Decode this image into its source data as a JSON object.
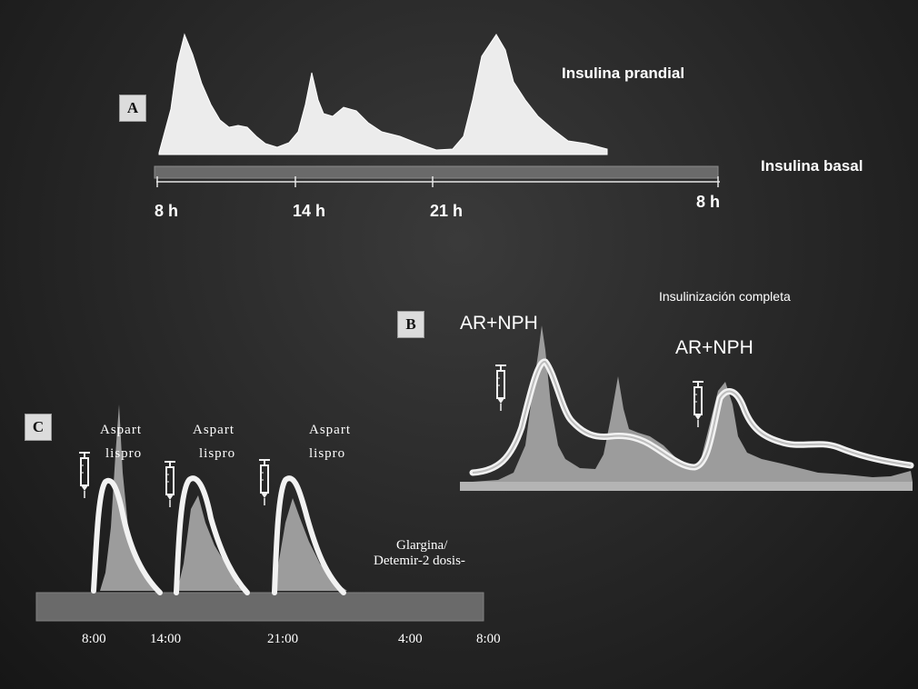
{
  "panel_a": {
    "letter": "A",
    "prandial_label": "Insulina prandial",
    "basal_label": "Insulina basal",
    "ticks": [
      "8 h",
      "14 h",
      "21 h",
      "8 h"
    ]
  },
  "panel_b": {
    "letter": "B",
    "title": "Insulinización completa",
    "dose_labels": [
      "AR+NPH",
      "AR+NPH"
    ]
  },
  "panel_c": {
    "letter": "C",
    "dose_labels": [
      {
        "line1": "Aspart",
        "line2": "lispro"
      },
      {
        "line1": "Aspart",
        "line2": "lispro"
      },
      {
        "line1": "Aspart",
        "line2": "lispro"
      }
    ],
    "basal_label_line1": "Glargina/",
    "basal_label_line2": "Detemir-2 dosis-",
    "ticks": [
      "8:00",
      "14:00",
      "21:00",
      "4:00",
      "8:00"
    ]
  },
  "icons": [
    "syringe-icon"
  ]
}
